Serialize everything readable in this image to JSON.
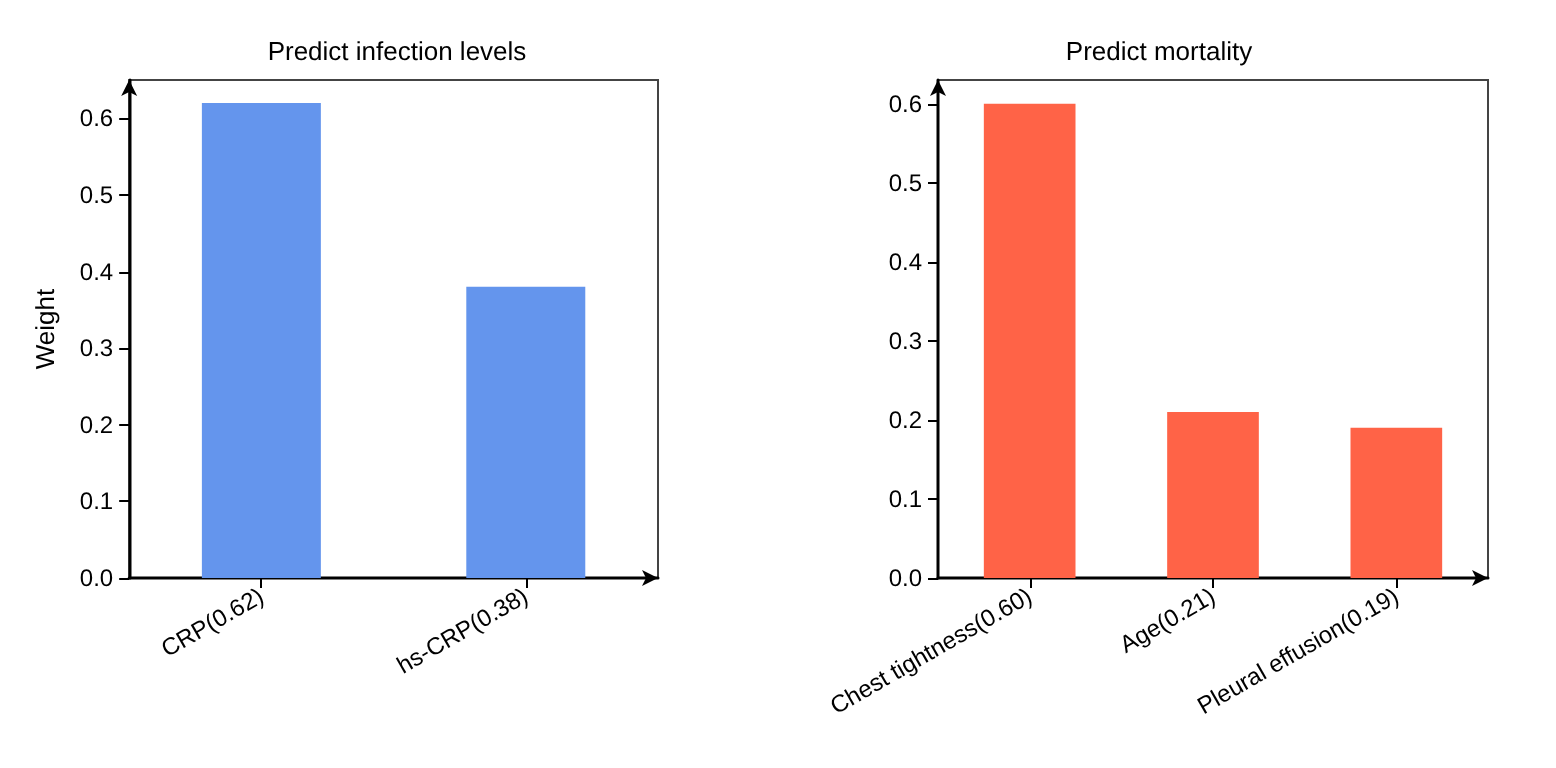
{
  "chart_data": [
    {
      "type": "bar",
      "title": "Predict infection levels",
      "ylabel": "Weight",
      "categories": [
        "CRP(0.62)",
        "hs-CRP(0.38)"
      ],
      "values": [
        0.62,
        0.38
      ],
      "color": "#6495ed",
      "ylim": [
        0,
        0.65
      ],
      "yticks": [
        {
          "value": 0,
          "label": "0.0"
        },
        0.1,
        0.2,
        0.3,
        0.4,
        0.5,
        0.6
      ],
      "grid": false
    },
    {
      "type": "bar",
      "title": "Predict mortality",
      "categories": [
        "Chest tightness(0.60)",
        "Age(0.21)",
        "Pleural effusion(0.19)"
      ],
      "values": [
        0.6,
        0.21,
        0.19
      ],
      "color": "#ff6347",
      "ylim": [
        0,
        0.63
      ],
      "yticks": [
        {
          "value": 0,
          "label": "0.0"
        },
        0.1,
        0.2,
        0.3,
        0.4,
        0.5,
        0.6
      ],
      "grid": false
    }
  ]
}
